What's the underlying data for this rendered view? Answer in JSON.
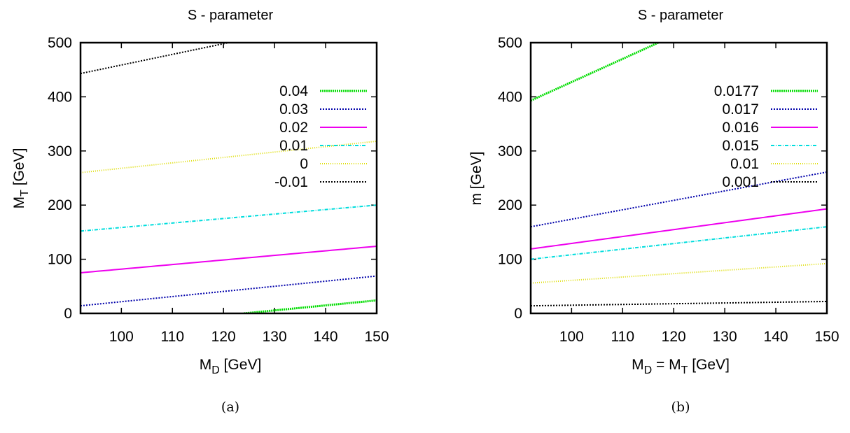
{
  "chart_data": [
    {
      "type": "line",
      "title": "S - parameter",
      "xlabel": {
        "main": "M",
        "sub": "D",
        "rest": " [GeV]"
      },
      "ylabel": {
        "main": "M",
        "sub": "T",
        "rest": " [GeV]"
      },
      "xlim": [
        92,
        150
      ],
      "ylim": [
        0,
        500
      ],
      "xticks": [
        100,
        110,
        120,
        130,
        140,
        150
      ],
      "yticks": [
        0,
        100,
        200,
        300,
        400,
        500
      ],
      "legend_position": "right",
      "caption": "(a)",
      "series": [
        {
          "name": "0.04",
          "color": "#00dd00",
          "x": [
            124,
            150
          ],
          "y": [
            0,
            24
          ]
        },
        {
          "name": "0.03",
          "color": "#0000aa",
          "x": [
            92,
            150
          ],
          "y": [
            14,
            69
          ]
        },
        {
          "name": "0.02",
          "color": "#ee00ee",
          "x": [
            92,
            150
          ],
          "y": [
            75,
            124
          ]
        },
        {
          "name": "0.01",
          "color": "#00dddd",
          "x": [
            92,
            150
          ],
          "y": [
            152,
            200
          ]
        },
        {
          "name": "0",
          "color": "#dddd00",
          "x": [
            92,
            150
          ],
          "y": [
            260,
            318
          ]
        },
        {
          "name": "-0.01",
          "color": "#000000",
          "x": [
            92,
            121
          ],
          "y": [
            443,
            500
          ]
        }
      ]
    },
    {
      "type": "line",
      "title": "S - parameter",
      "xlabel": {
        "main": "M",
        "sub": "D",
        "rest": " = M",
        "sub2": "T",
        "rest2": " [GeV]"
      },
      "ylabel": {
        "main": "m [GeV]"
      },
      "xlim": [
        92,
        150
      ],
      "ylim": [
        0,
        500
      ],
      "xticks": [
        100,
        110,
        120,
        130,
        140,
        150
      ],
      "yticks": [
        0,
        100,
        200,
        300,
        400,
        500
      ],
      "legend_position": "right",
      "caption": "(b)",
      "series": [
        {
          "name": "0.0177",
          "color": "#00dd00",
          "x": [
            92,
            117
          ],
          "y": [
            393,
            500
          ]
        },
        {
          "name": "0.017",
          "color": "#0000aa",
          "x": [
            92,
            150
          ],
          "y": [
            160,
            261
          ]
        },
        {
          "name": "0.016",
          "color": "#ee00ee",
          "x": [
            92,
            150
          ],
          "y": [
            119,
            193
          ]
        },
        {
          "name": "0.015",
          "color": "#00dddd",
          "x": [
            92,
            150
          ],
          "y": [
            100,
            160
          ]
        },
        {
          "name": "0.01",
          "color": "#dddd00",
          "x": [
            92,
            150
          ],
          "y": [
            56,
            92
          ]
        },
        {
          "name": "0.001",
          "color": "#000000",
          "x": [
            92,
            150
          ],
          "y": [
            14,
            22
          ]
        }
      ]
    }
  ]
}
